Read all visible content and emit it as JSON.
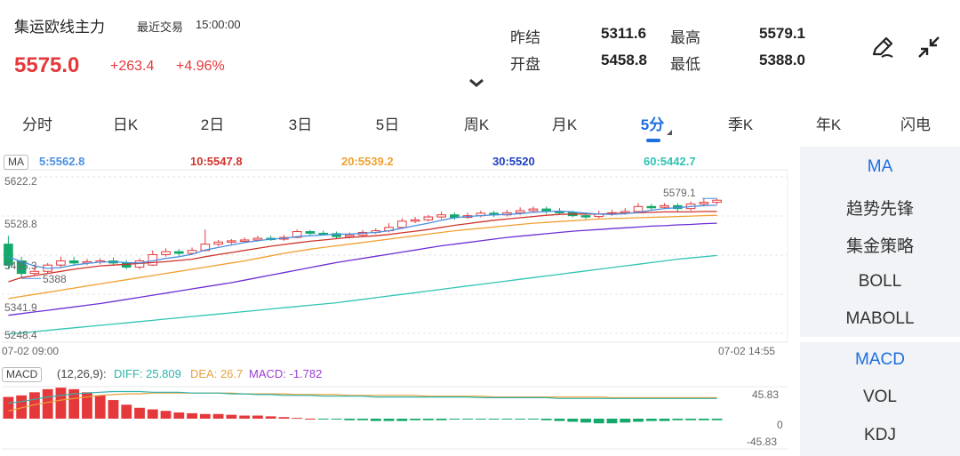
{
  "header": {
    "title": "集运欧线主力",
    "trade_label": "最近交易",
    "trade_time": "15:00:00",
    "price": "5575.0",
    "change": "+263.4",
    "change_pct": "+4.96%"
  },
  "quote": {
    "prev_settle_label": "昨结",
    "prev_settle": "5311.6",
    "high_label": "最高",
    "high": "5579.1",
    "open_label": "开盘",
    "open": "5458.8",
    "low_label": "最低",
    "low": "5388.0"
  },
  "icons": {
    "draw": "pen-draw-icon",
    "collapse": "shrink-icon",
    "fold": "chevron-down-icon"
  },
  "tabs": [
    {
      "label": "分时"
    },
    {
      "label": "日K"
    },
    {
      "label": "2日"
    },
    {
      "label": "3日"
    },
    {
      "label": "5日"
    },
    {
      "label": "周K"
    },
    {
      "label": "月K"
    },
    {
      "label": "5分"
    },
    {
      "label": "季K"
    },
    {
      "label": "年K"
    },
    {
      "label": "闪电"
    }
  ],
  "active_tab": "5分",
  "side_top": [
    "MA",
    "趋势先锋",
    "集金策略",
    "BOLL",
    "MABOLL"
  ],
  "side_bottom": [
    "MACD",
    "VOL",
    "KDJ"
  ],
  "ma_legend": {
    "pill": "MA",
    "ma5": "5:5562.8",
    "ma10": "10:5547.8",
    "ma20": "20:5539.2",
    "ma30": "30:5520",
    "ma60": "60:5442.7"
  },
  "colors": {
    "up": "#e5383b",
    "down": "#13a96b",
    "accent": "#1e6fe0",
    "ma5": "#4a90e2",
    "ma10": "#d0342c",
    "ma20": "#f0a030",
    "ma30": "#6b2fd6",
    "ma60": "#2fc4b2"
  },
  "macd_legend": {
    "pill": "MACD",
    "params": "(12,26,9):",
    "diff": "DIFF: 25.809",
    "dea": "DEA: 26.7",
    "macd": "MACD: -1.782"
  },
  "chart_data": {
    "type": "candlestick",
    "price_axis_ticks": [
      "5622.2",
      "5528.8",
      "5435.3",
      "5341.9",
      "5248.4"
    ],
    "time_start": "07-02 09:00",
    "time_end": "07-02 14:55",
    "high_marker": "5579.1",
    "low_marker": "5388",
    "candles": [
      [
        5470,
        5420,
        5490,
        5410
      ],
      [
        5430,
        5400,
        5440,
        5388
      ],
      [
        5400,
        5405,
        5420,
        5395
      ],
      [
        5405,
        5420,
        5425,
        5400
      ],
      [
        5420,
        5430,
        5440,
        5415
      ],
      [
        5430,
        5425,
        5440,
        5418
      ],
      [
        5425,
        5428,
        5435,
        5420
      ],
      [
        5428,
        5430,
        5436,
        5422
      ],
      [
        5430,
        5425,
        5438,
        5418
      ],
      [
        5425,
        5415,
        5432,
        5410
      ],
      [
        5415,
        5430,
        5436,
        5410
      ],
      [
        5420,
        5445,
        5455,
        5418
      ],
      [
        5445,
        5452,
        5460,
        5440
      ],
      [
        5452,
        5448,
        5458,
        5442
      ],
      [
        5448,
        5455,
        5462,
        5444
      ],
      [
        5455,
        5470,
        5505,
        5452
      ],
      [
        5470,
        5475,
        5480,
        5465
      ],
      [
        5475,
        5478,
        5482,
        5470
      ],
      [
        5478,
        5480,
        5486,
        5474
      ],
      [
        5480,
        5484,
        5490,
        5476
      ],
      [
        5484,
        5482,
        5490,
        5478
      ],
      [
        5482,
        5486,
        5492,
        5478
      ],
      [
        5486,
        5500,
        5505,
        5484
      ],
      [
        5500,
        5496,
        5504,
        5490
      ],
      [
        5496,
        5495,
        5502,
        5490
      ],
      [
        5495,
        5488,
        5500,
        5484
      ],
      [
        5488,
        5492,
        5498,
        5484
      ],
      [
        5492,
        5498,
        5504,
        5488
      ],
      [
        5498,
        5502,
        5508,
        5494
      ],
      [
        5502,
        5510,
        5520,
        5498
      ],
      [
        5510,
        5525,
        5532,
        5506
      ],
      [
        5525,
        5528,
        5535,
        5520
      ],
      [
        5528,
        5535,
        5540,
        5524
      ],
      [
        5535,
        5540,
        5548,
        5530
      ],
      [
        5540,
        5534,
        5546,
        5528
      ],
      [
        5534,
        5538,
        5545,
        5530
      ],
      [
        5538,
        5544,
        5550,
        5534
      ],
      [
        5544,
        5540,
        5550,
        5535
      ],
      [
        5540,
        5545,
        5552,
        5536
      ],
      [
        5545,
        5550,
        5558,
        5540
      ],
      [
        5550,
        5554,
        5560,
        5545
      ],
      [
        5554,
        5548,
        5560,
        5542
      ],
      [
        5548,
        5546,
        5556,
        5540
      ],
      [
        5546,
        5538,
        5550,
        5534
      ],
      [
        5538,
        5536,
        5546,
        5530
      ],
      [
        5536,
        5542,
        5550,
        5532
      ],
      [
        5542,
        5545,
        5552,
        5538
      ],
      [
        5545,
        5548,
        5556,
        5540
      ],
      [
        5548,
        5560,
        5568,
        5545
      ],
      [
        5560,
        5558,
        5566,
        5552
      ],
      [
        5558,
        5562,
        5568,
        5554
      ],
      [
        5562,
        5555,
        5568,
        5548
      ],
      [
        5555,
        5566,
        5572,
        5550
      ],
      [
        5566,
        5570,
        5579,
        5560
      ],
      [
        5570,
        5575,
        5579,
        5565
      ]
    ],
    "ma5": [
      5440,
      5428,
      5418,
      5412,
      5414,
      5420,
      5424,
      5427,
      5428,
      5426,
      5425,
      5430,
      5436,
      5440,
      5446,
      5456,
      5462,
      5468,
      5474,
      5478,
      5482,
      5484,
      5488,
      5490,
      5492,
      5494,
      5494,
      5496,
      5498,
      5502,
      5508,
      5514,
      5520,
      5527,
      5533,
      5536,
      5538,
      5540,
      5541,
      5543,
      5546,
      5548,
      5549,
      5547,
      5544,
      5542,
      5541,
      5543,
      5546,
      5551,
      5555,
      5557,
      5560,
      5562,
      5563
    ],
    "ma10": [
      5380,
      5390,
      5395,
      5400,
      5405,
      5410,
      5414,
      5418,
      5420,
      5422,
      5424,
      5426,
      5428,
      5431,
      5434,
      5440,
      5445,
      5450,
      5455,
      5460,
      5465,
      5469,
      5473,
      5477,
      5480,
      5483,
      5486,
      5488,
      5490,
      5493,
      5497,
      5501,
      5505,
      5510,
      5515,
      5519,
      5523,
      5527,
      5530,
      5533,
      5536,
      5539,
      5541,
      5542,
      5542,
      5542,
      5543,
      5544,
      5545,
      5546,
      5547,
      5547,
      5547,
      5548,
      5548
    ],
    "ma20": [
      5340,
      5345,
      5350,
      5355,
      5360,
      5365,
      5370,
      5375,
      5380,
      5385,
      5390,
      5395,
      5400,
      5405,
      5410,
      5415,
      5420,
      5425,
      5430,
      5436,
      5442,
      5448,
      5453,
      5458,
      5462,
      5466,
      5470,
      5474,
      5478,
      5482,
      5486,
      5490,
      5494,
      5498,
      5502,
      5505,
      5508,
      5511,
      5514,
      5517,
      5520,
      5522,
      5524,
      5526,
      5528,
      5530,
      5531,
      5532,
      5533,
      5534,
      5535,
      5536,
      5537,
      5538,
      5539
    ],
    "ma30": [
      5300,
      5304,
      5308,
      5312,
      5316,
      5320,
      5324,
      5328,
      5333,
      5338,
      5343,
      5348,
      5353,
      5358,
      5363,
      5368,
      5373,
      5378,
      5384,
      5390,
      5396,
      5402,
      5408,
      5414,
      5420,
      5426,
      5431,
      5436,
      5441,
      5446,
      5451,
      5456,
      5461,
      5466,
      5470,
      5474,
      5478,
      5482,
      5486,
      5489,
      5492,
      5495,
      5498,
      5501,
      5503,
      5505,
      5507,
      5509,
      5511,
      5513,
      5514,
      5516,
      5517,
      5519,
      5520
    ],
    "ma60": [
      5255,
      5258,
      5261,
      5264,
      5267,
      5270,
      5273,
      5276,
      5279,
      5282,
      5285,
      5288,
      5291,
      5294,
      5297,
      5300,
      5303,
      5306,
      5309,
      5312,
      5315,
      5318,
      5321,
      5324,
      5327,
      5330,
      5334,
      5338,
      5342,
      5346,
      5350,
      5354,
      5358,
      5362,
      5366,
      5370,
      5374,
      5378,
      5382,
      5386,
      5390,
      5394,
      5398,
      5402,
      5406,
      5410,
      5414,
      5418,
      5422,
      5426,
      5430,
      5434,
      5437,
      5440,
      5443
    ],
    "macd_axis_ticks": [
      "45.83",
      "0",
      "-45.83"
    ],
    "macd_hist": [
      28,
      30,
      34,
      38,
      40,
      38,
      34,
      30,
      24,
      18,
      14,
      12,
      10,
      8,
      7,
      6,
      6,
      5,
      4,
      4,
      3,
      2,
      1,
      0,
      -1,
      -1,
      -2,
      -2,
      -3,
      -3,
      -3,
      -2,
      -2,
      -2,
      -1,
      -1,
      -1,
      -1,
      -1,
      -1,
      -1,
      -2,
      -3,
      -4,
      -5,
      -6,
      -6,
      -5,
      -4,
      -3,
      -3,
      -2,
      -2,
      -2,
      -2
    ],
    "macd_diff": [
      20,
      22,
      25,
      28,
      30,
      32,
      33,
      34,
      35,
      35,
      35,
      34,
      34,
      34,
      33,
      33,
      33,
      32,
      32,
      31,
      31,
      30,
      30,
      30,
      29,
      29,
      29,
      29,
      28,
      28,
      28,
      28,
      28,
      28,
      28,
      28,
      27,
      27,
      27,
      27,
      27,
      27,
      26,
      26,
      26,
      26,
      26,
      26,
      26,
      26,
      26,
      26,
      26,
      26,
      26
    ],
    "macd_dea": [
      10,
      14,
      18,
      21,
      24,
      26,
      28,
      30,
      31,
      32,
      32,
      33,
      33,
      33,
      33,
      33,
      33,
      33,
      32,
      32,
      32,
      32,
      31,
      31,
      31,
      31,
      30,
      30,
      30,
      30,
      30,
      30,
      29,
      29,
      29,
      29,
      29,
      28,
      28,
      28,
      28,
      28,
      28,
      28,
      28,
      28,
      27,
      27,
      27,
      27,
      27,
      27,
      27,
      27,
      27
    ]
  }
}
